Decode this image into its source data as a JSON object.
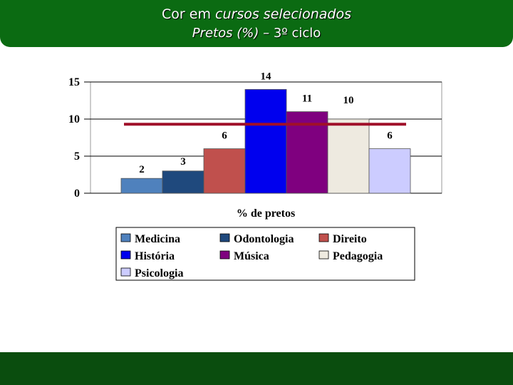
{
  "header": {
    "title_plain": "Cor em",
    "title_italic": "cursos selecionados",
    "subtitle_italic": "Pretos (%) –",
    "subtitle_plain": "3º ciclo"
  },
  "chart_data": {
    "type": "bar",
    "xlabel": "% de pretos",
    "ylabel": "",
    "ylim": [
      0,
      15
    ],
    "yticks": [
      0,
      5,
      10,
      15
    ],
    "grid": true,
    "legend_position": "bottom",
    "series": [
      {
        "name": "Medicina",
        "value": 2,
        "color": "#4f81bd"
      },
      {
        "name": "Odontologia",
        "value": 3,
        "color": "#1f497d"
      },
      {
        "name": "Direito",
        "value": 6,
        "color": "#c0504d"
      },
      {
        "name": "História",
        "value": 14,
        "color": "#0000ee"
      },
      {
        "name": "Música",
        "value": 11,
        "color": "#7f007f"
      },
      {
        "name": "Pedagogia",
        "value": 10,
        "color": "#eeeae0"
      },
      {
        "name": "Psicologia",
        "value": 6,
        "color": "#ccccff"
      }
    ],
    "reference_line": {
      "value": 9.3,
      "color": "#a0102a"
    }
  }
}
